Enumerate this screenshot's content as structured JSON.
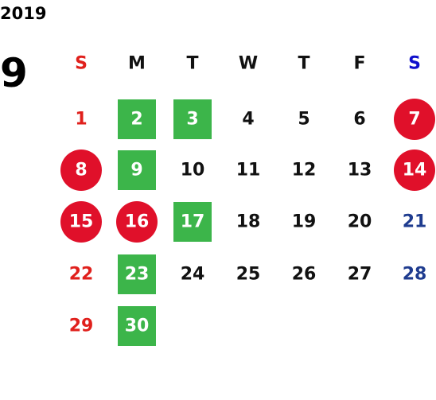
{
  "year": "2019",
  "month": "9",
  "weekdays": [
    "S",
    "M",
    "T",
    "W",
    "T",
    "F",
    "S"
  ],
  "weeks": [
    [
      {
        "day": 1,
        "style": "plain"
      },
      {
        "day": 2,
        "style": "box"
      },
      {
        "day": 3,
        "style": "box"
      },
      {
        "day": 4,
        "style": "plain"
      },
      {
        "day": 5,
        "style": "plain"
      },
      {
        "day": 6,
        "style": "plain"
      },
      {
        "day": 7,
        "style": "circle"
      }
    ],
    [
      {
        "day": 8,
        "style": "circle"
      },
      {
        "day": 9,
        "style": "box"
      },
      {
        "day": 10,
        "style": "plain"
      },
      {
        "day": 11,
        "style": "plain"
      },
      {
        "day": 12,
        "style": "plain"
      },
      {
        "day": 13,
        "style": "plain"
      },
      {
        "day": 14,
        "style": "circle"
      }
    ],
    [
      {
        "day": 15,
        "style": "circle"
      },
      {
        "day": 16,
        "style": "circle"
      },
      {
        "day": 17,
        "style": "box"
      },
      {
        "day": 18,
        "style": "plain"
      },
      {
        "day": 19,
        "style": "plain"
      },
      {
        "day": 20,
        "style": "plain"
      },
      {
        "day": 21,
        "style": "plain"
      }
    ],
    [
      {
        "day": 22,
        "style": "plain"
      },
      {
        "day": 23,
        "style": "box"
      },
      {
        "day": 24,
        "style": "plain"
      },
      {
        "day": 25,
        "style": "plain"
      },
      {
        "day": 26,
        "style": "plain"
      },
      {
        "day": 27,
        "style": "plain"
      },
      {
        "day": 28,
        "style": "plain"
      }
    ],
    [
      {
        "day": 29,
        "style": "plain"
      },
      {
        "day": 30,
        "style": "box"
      }
    ]
  ]
}
